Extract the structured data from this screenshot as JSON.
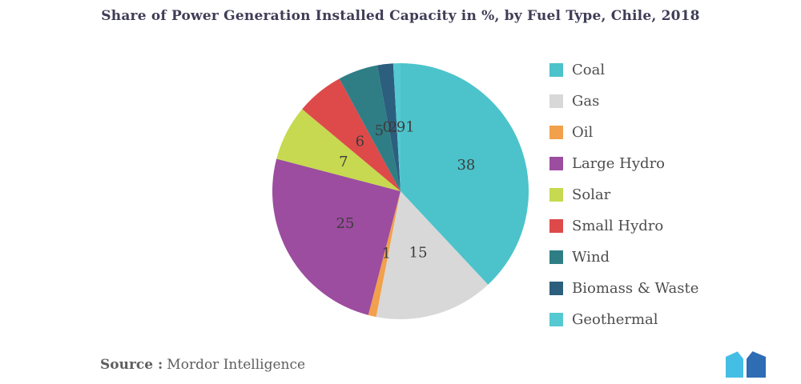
{
  "source": {
    "label": "Source :",
    "text": "Mordor Intelligence"
  },
  "brand": {
    "logo_light": "#45BEE6",
    "logo_dark": "#2E6CB4"
  },
  "chart_data": {
    "type": "pie",
    "title": "Share of Power Generation Installed Capacity in %, by Fuel Type, Chile, 2018",
    "legend_position": "right",
    "start_angle_deg": 0,
    "direction": "clockwise",
    "label_color": "#3c3c3c",
    "slices": [
      {
        "name": "Coal",
        "value": 38,
        "label": "38",
        "color": "#4CC3CB"
      },
      {
        "name": "Gas",
        "value": 15,
        "label": "15",
        "color": "#D8D8D8"
      },
      {
        "name": "Oil",
        "value": 1,
        "label": "1",
        "color": "#F2A04B"
      },
      {
        "name": "Large Hydro",
        "value": 25,
        "label": "25",
        "color": "#9C4D9F"
      },
      {
        "name": "Solar",
        "value": 7,
        "label": "7",
        "color": "#C6D950"
      },
      {
        "name": "Small Hydro",
        "value": 6,
        "label": "6",
        "color": "#DE4A4A"
      },
      {
        "name": "Wind",
        "value": 5,
        "label": "5",
        "color": "#2F7E86"
      },
      {
        "name": "Biomass & Waste",
        "value": 2,
        "label": "2",
        "color": "#2B5F7D"
      },
      {
        "name": "Geothermal",
        "value": 0.91,
        "label": "0.91",
        "color": "#54C9D1"
      }
    ]
  }
}
